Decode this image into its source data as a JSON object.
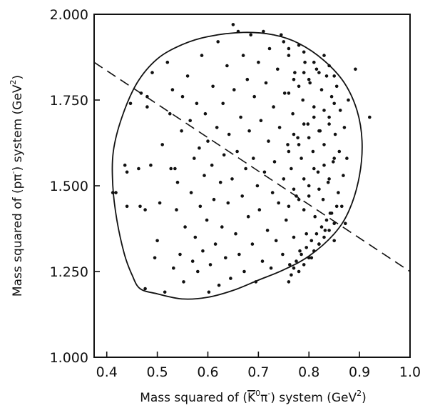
{
  "chart_data": {
    "type": "scatter",
    "xlabel_parts": {
      "before": "Mass squared of (",
      "kbar": "K",
      "sup0": "0",
      "pi": "π",
      "supminus": "-",
      "after": ") system (GeV",
      "sup2": "2",
      "close": ")"
    },
    "ylabel_parts": {
      "before": "Mass squared of (p",
      "pi": "π",
      "supminus": "-",
      "after": ") system (GeV",
      "sup2": "2",
      "close": ")"
    },
    "xlim": [
      0.375,
      1.0
    ],
    "ylim": [
      1.0,
      2.0
    ],
    "x_ticks": [
      {
        "v": 0.4,
        "label": "0.4"
      },
      {
        "v": 0.5,
        "label": "0.5"
      },
      {
        "v": 0.6,
        "label": "0.6"
      },
      {
        "v": 0.7,
        "label": "0.7"
      },
      {
        "v": 0.8,
        "label": "0.8"
      },
      {
        "v": 0.9,
        "label": "0.9"
      },
      {
        "v": 1.0,
        "label": "1.0"
      }
    ],
    "y_ticks": [
      {
        "v": 1.0,
        "label": "1.000"
      },
      {
        "v": 1.25,
        "label": "1.250"
      },
      {
        "v": 1.5,
        "label": "1.500"
      },
      {
        "v": 1.75,
        "label": "1.750"
      },
      {
        "v": 2.0,
        "label": "2.000"
      }
    ],
    "boundary_contour": [
      [
        0.466,
        1.2
      ],
      [
        0.5,
        1.185
      ],
      [
        0.55,
        1.17
      ],
      [
        0.6,
        1.175
      ],
      [
        0.65,
        1.195
      ],
      [
        0.7,
        1.225
      ],
      [
        0.75,
        1.255
      ],
      [
        0.8,
        1.295
      ],
      [
        0.85,
        1.36
      ],
      [
        0.88,
        1.43
      ],
      [
        0.9,
        1.53
      ],
      [
        0.905,
        1.63
      ],
      [
        0.895,
        1.72
      ],
      [
        0.87,
        1.8
      ],
      [
        0.83,
        1.865
      ],
      [
        0.78,
        1.915
      ],
      [
        0.73,
        1.94
      ],
      [
        0.67,
        1.947
      ],
      [
        0.6,
        1.935
      ],
      [
        0.55,
        1.912
      ],
      [
        0.5,
        1.87
      ],
      [
        0.46,
        1.8
      ],
      [
        0.43,
        1.7
      ],
      [
        0.413,
        1.6
      ],
      [
        0.412,
        1.5
      ],
      [
        0.42,
        1.4
      ],
      [
        0.435,
        1.3
      ],
      [
        0.45,
        1.24
      ],
      [
        0.466,
        1.2
      ]
    ],
    "dashed_line": {
      "from": [
        0.375,
        1.86
      ],
      "to": [
        1.0,
        1.25
      ]
    },
    "points": [
      [
        0.412,
        1.48
      ],
      [
        0.418,
        1.48
      ],
      [
        0.436,
        1.56
      ],
      [
        0.44,
        1.54
      ],
      [
        0.44,
        1.44
      ],
      [
        0.447,
        1.74
      ],
      [
        0.463,
        1.55
      ],
      [
        0.466,
        1.44
      ],
      [
        0.468,
        1.77
      ],
      [
        0.476,
        1.43
      ],
      [
        0.476,
        1.2
      ],
      [
        0.48,
        1.73
      ],
      [
        0.48,
        1.76
      ],
      [
        0.487,
        1.56
      ],
      [
        0.49,
        1.83
      ],
      [
        0.495,
        1.29
      ],
      [
        0.5,
        1.34
      ],
      [
        0.505,
        1.45
      ],
      [
        0.51,
        1.62
      ],
      [
        0.515,
        1.19
      ],
      [
        0.52,
        1.86
      ],
      [
        0.525,
        1.71
      ],
      [
        0.527,
        1.55
      ],
      [
        0.53,
        1.78
      ],
      [
        0.532,
        1.26
      ],
      [
        0.535,
        1.55
      ],
      [
        0.538,
        1.43
      ],
      [
        0.54,
        1.51
      ],
      [
        0.545,
        1.3
      ],
      [
        0.548,
        1.66
      ],
      [
        0.55,
        1.76
      ],
      [
        0.552,
        1.22
      ],
      [
        0.555,
        1.38
      ],
      [
        0.56,
        1.82
      ],
      [
        0.565,
        1.69
      ],
      [
        0.567,
        1.48
      ],
      [
        0.57,
        1.28
      ],
      [
        0.573,
        1.58
      ],
      [
        0.575,
        1.35
      ],
      [
        0.578,
        1.74
      ],
      [
        0.58,
        1.25
      ],
      [
        0.583,
        1.61
      ],
      [
        0.585,
        1.44
      ],
      [
        0.588,
        1.88
      ],
      [
        0.59,
        1.31
      ],
      [
        0.593,
        1.53
      ],
      [
        0.595,
        1.71
      ],
      [
        0.598,
        1.4
      ],
      [
        0.6,
        1.63
      ],
      [
        0.602,
        1.19
      ],
      [
        0.605,
        1.27
      ],
      [
        0.608,
        1.56
      ],
      [
        0.61,
        1.79
      ],
      [
        0.612,
        1.46
      ],
      [
        0.615,
        1.33
      ],
      [
        0.618,
        1.67
      ],
      [
        0.62,
        1.92
      ],
      [
        0.622,
        1.21
      ],
      [
        0.625,
        1.51
      ],
      [
        0.628,
        1.38
      ],
      [
        0.63,
        1.74
      ],
      [
        0.632,
        1.59
      ],
      [
        0.635,
        1.29
      ],
      [
        0.638,
        1.85
      ],
      [
        0.64,
        1.45
      ],
      [
        0.642,
        1.65
      ],
      [
        0.645,
        1.23
      ],
      [
        0.648,
        1.52
      ],
      [
        0.65,
        1.97
      ],
      [
        0.652,
        1.78
      ],
      [
        0.655,
        1.36
      ],
      [
        0.658,
        1.6
      ],
      [
        0.66,
        1.95
      ],
      [
        0.662,
        1.3
      ],
      [
        0.665,
        1.7
      ],
      [
        0.668,
        1.47
      ],
      [
        0.67,
        1.88
      ],
      [
        0.672,
        1.25
      ],
      [
        0.675,
        1.55
      ],
      [
        0.678,
        1.81
      ],
      [
        0.68,
        1.41
      ],
      [
        0.682,
        1.66
      ],
      [
        0.685,
        1.94
      ],
      [
        0.688,
        1.33
      ],
      [
        0.69,
        1.58
      ],
      [
        0.692,
        1.76
      ],
      [
        0.695,
        1.22
      ],
      [
        0.698,
        1.5
      ],
      [
        0.7,
        1.86
      ],
      [
        0.702,
        1.43
      ],
      [
        0.705,
        1.69
      ],
      [
        0.708,
        1.28
      ],
      [
        0.71,
        1.95
      ],
      [
        0.712,
        1.54
      ],
      [
        0.715,
        1.8
      ],
      [
        0.718,
        1.37
      ],
      [
        0.72,
        1.63
      ],
      [
        0.722,
        1.9
      ],
      [
        0.725,
        1.26
      ],
      [
        0.728,
        1.48
      ],
      [
        0.73,
        1.73
      ],
      [
        0.732,
        1.57
      ],
      [
        0.735,
        1.34
      ],
      [
        0.738,
        1.84
      ],
      [
        0.74,
        1.45
      ],
      [
        0.742,
        1.67
      ],
      [
        0.745,
        1.94
      ],
      [
        0.748,
        1.3
      ],
      [
        0.75,
        1.52
      ],
      [
        0.752,
        1.77
      ],
      [
        0.755,
        1.4
      ],
      [
        0.758,
        1.62
      ],
      [
        0.76,
        1.88
      ],
      [
        0.762,
        1.27
      ],
      [
        0.765,
        1.55
      ],
      [
        0.768,
        1.71
      ],
      [
        0.77,
        1.35
      ],
      [
        0.772,
        1.83
      ],
      [
        0.775,
        1.47
      ],
      [
        0.778,
        1.64
      ],
      [
        0.78,
        1.91
      ],
      [
        0.782,
        1.31
      ],
      [
        0.785,
        1.58
      ],
      [
        0.788,
        1.75
      ],
      [
        0.79,
        1.43
      ],
      [
        0.792,
        1.86
      ],
      [
        0.795,
        1.36
      ],
      [
        0.798,
        1.68
      ],
      [
        0.8,
        1.5
      ],
      [
        0.802,
        1.8
      ],
      [
        0.805,
        1.29
      ],
      [
        0.808,
        1.6
      ],
      [
        0.81,
        1.73
      ],
      [
        0.812,
        1.41
      ],
      [
        0.815,
        1.84
      ],
      [
        0.818,
        1.54
      ],
      [
        0.82,
        1.33
      ],
      [
        0.822,
        1.66
      ],
      [
        0.825,
        1.78
      ],
      [
        0.828,
        1.46
      ],
      [
        0.83,
        1.62
      ],
      [
        0.832,
        1.37
      ],
      [
        0.835,
        1.82
      ],
      [
        0.838,
        1.51
      ],
      [
        0.84,
        1.7
      ],
      [
        0.842,
        1.42
      ],
      [
        0.845,
        1.76
      ],
      [
        0.848,
        1.57
      ],
      [
        0.85,
        1.34
      ],
      [
        0.852,
        1.65
      ],
      [
        0.855,
        1.79
      ],
      [
        0.858,
        1.48
      ],
      [
        0.86,
        1.6
      ],
      [
        0.862,
        1.72
      ],
      [
        0.865,
        1.44
      ],
      [
        0.868,
        1.53
      ],
      [
        0.87,
        1.67
      ],
      [
        0.872,
        1.39
      ],
      [
        0.875,
        1.58
      ],
      [
        0.878,
        1.75
      ],
      [
        0.76,
        1.22
      ],
      [
        0.765,
        1.24
      ],
      [
        0.77,
        1.26
      ],
      [
        0.775,
        1.28
      ],
      [
        0.78,
        1.25
      ],
      [
        0.785,
        1.3
      ],
      [
        0.79,
        1.27
      ],
      [
        0.795,
        1.32
      ],
      [
        0.8,
        1.29
      ],
      [
        0.805,
        1.34
      ],
      [
        0.81,
        1.31
      ],
      [
        0.815,
        1.36
      ],
      [
        0.82,
        1.33
      ],
      [
        0.825,
        1.38
      ],
      [
        0.83,
        1.35
      ],
      [
        0.835,
        1.4
      ],
      [
        0.84,
        1.37
      ],
      [
        0.845,
        1.42
      ],
      [
        0.85,
        1.39
      ],
      [
        0.855,
        1.44
      ],
      [
        0.76,
        1.44
      ],
      [
        0.77,
        1.49
      ],
      [
        0.78,
        1.46
      ],
      [
        0.79,
        1.52
      ],
      [
        0.8,
        1.47
      ],
      [
        0.81,
        1.55
      ],
      [
        0.82,
        1.49
      ],
      [
        0.83,
        1.56
      ],
      [
        0.84,
        1.52
      ],
      [
        0.85,
        1.58
      ],
      [
        0.76,
        1.6
      ],
      [
        0.77,
        1.65
      ],
      [
        0.78,
        1.62
      ],
      [
        0.79,
        1.68
      ],
      [
        0.8,
        1.64
      ],
      [
        0.81,
        1.7
      ],
      [
        0.82,
        1.66
      ],
      [
        0.83,
        1.72
      ],
      [
        0.84,
        1.68
      ],
      [
        0.85,
        1.74
      ],
      [
        0.76,
        1.77
      ],
      [
        0.77,
        1.81
      ],
      [
        0.78,
        1.79
      ],
      [
        0.79,
        1.83
      ],
      [
        0.8,
        1.81
      ],
      [
        0.81,
        1.86
      ],
      [
        0.82,
        1.83
      ],
      [
        0.83,
        1.88
      ],
      [
        0.84,
        1.85
      ],
      [
        0.85,
        1.82
      ],
      [
        0.892,
        1.84
      ],
      [
        0.92,
        1.7
      ],
      [
        0.75,
        1.92
      ],
      [
        0.76,
        1.9
      ],
      [
        0.79,
        1.89
      ]
    ]
  }
}
